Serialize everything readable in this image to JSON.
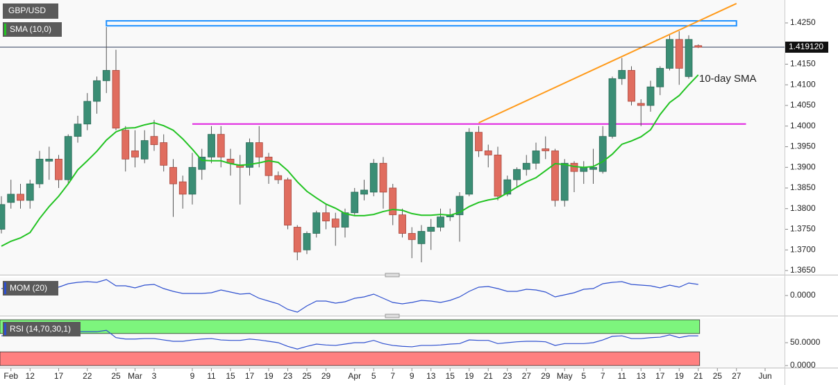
{
  "chart_data": [
    {
      "type": "candlestick",
      "title": "GBP/USD",
      "annotation": "10-day SMA",
      "categories": [
        null,
        "Feb",
        null,
        "12",
        null,
        null,
        "17",
        null,
        null,
        "22",
        null,
        null,
        "25",
        null,
        "Mar",
        null,
        "3",
        null,
        null,
        null,
        "9",
        null,
        "11",
        null,
        "15",
        null,
        "17",
        null,
        "19",
        null,
        "23",
        null,
        "25",
        null,
        "29",
        null,
        null,
        "Apr",
        null,
        "5",
        null,
        "7",
        null,
        "9",
        null,
        "13",
        null,
        "15",
        null,
        "19",
        null,
        "21",
        null,
        "23",
        null,
        "27",
        null,
        "29",
        null,
        "May",
        null,
        "5",
        null,
        "7",
        null,
        "11",
        null,
        "13",
        null,
        "17",
        null,
        "19",
        null,
        "21",
        null,
        "25",
        null,
        "27",
        null,
        null,
        "Jun"
      ],
      "open": [
        1.375,
        1.3815,
        1.3835,
        1.382,
        1.386,
        1.3915,
        1.392,
        1.387,
        1.3975,
        1.4005,
        1.406,
        1.411,
        1.4135,
        1.399,
        1.394,
        1.392,
        1.3975,
        1.396,
        1.39,
        1.3865,
        1.3835,
        1.3895,
        1.3925,
        1.398,
        1.392,
        1.3905,
        1.39,
        1.396,
        1.3925,
        1.388,
        1.387,
        1.3755,
        1.37,
        1.374,
        1.379,
        1.3775,
        1.3755,
        1.379,
        1.3835,
        1.384,
        1.391,
        1.385,
        1.3785,
        1.374,
        1.3715,
        1.3745,
        1.3755,
        1.378,
        1.3785,
        1.3835,
        1.3985,
        1.394,
        1.393,
        1.3835,
        1.387,
        1.3895,
        1.391,
        1.3945,
        1.394,
        1.382,
        1.391,
        1.389,
        1.3895,
        1.389,
        1.3975,
        1.4115,
        1.4135,
        1.4055,
        1.405,
        1.4095,
        1.414,
        1.421,
        1.412,
        1.4195,
        null,
        null,
        null,
        null,
        null,
        null,
        null
      ],
      "high": [
        1.383,
        1.387,
        1.386,
        1.387,
        1.394,
        1.395,
        1.393,
        1.398,
        1.4025,
        1.408,
        1.412,
        1.424,
        1.4185,
        1.4,
        1.399,
        1.399,
        1.4015,
        1.398,
        1.392,
        1.388,
        1.3935,
        1.3945,
        1.4,
        1.4,
        1.3945,
        1.393,
        1.397,
        1.4,
        1.3935,
        1.389,
        1.3875,
        1.376,
        1.3745,
        1.3795,
        1.381,
        1.379,
        1.38,
        1.385,
        1.387,
        1.392,
        1.3925,
        1.386,
        1.38,
        1.3755,
        1.376,
        1.3775,
        1.38,
        1.38,
        1.384,
        1.3995,
        1.4,
        1.3955,
        1.395,
        1.388,
        1.39,
        1.393,
        1.396,
        1.3975,
        1.3945,
        1.392,
        1.3915,
        1.3915,
        1.3945,
        1.4,
        1.412,
        1.4165,
        1.4145,
        1.4065,
        1.411,
        1.4145,
        1.422,
        1.423,
        1.422,
        1.4198,
        null,
        null,
        null,
        null,
        null,
        null,
        null
      ],
      "low": [
        1.374,
        1.38,
        1.38,
        1.38,
        1.385,
        1.387,
        1.385,
        1.386,
        1.396,
        1.399,
        1.403,
        1.408,
        1.399,
        1.389,
        1.39,
        1.391,
        1.394,
        1.389,
        1.378,
        1.38,
        1.381,
        1.387,
        1.391,
        1.39,
        1.388,
        1.381,
        1.388,
        1.39,
        1.386,
        1.386,
        1.375,
        1.3675,
        1.369,
        1.373,
        1.375,
        1.371,
        1.373,
        1.3785,
        1.382,
        1.383,
        1.38,
        1.376,
        1.373,
        1.368,
        1.367,
        1.37,
        1.3745,
        1.377,
        1.372,
        1.383,
        1.3925,
        1.39,
        1.382,
        1.383,
        1.385,
        1.388,
        1.3895,
        1.392,
        1.3805,
        1.3805,
        1.384,
        1.386,
        1.386,
        1.3885,
        1.397,
        1.41,
        1.405,
        1.4,
        1.4035,
        1.4075,
        1.4135,
        1.41,
        1.4115,
        1.4189,
        null,
        null,
        null,
        null,
        null,
        null,
        null
      ],
      "close": [
        1.381,
        1.3835,
        1.382,
        1.386,
        1.392,
        1.392,
        1.387,
        1.3975,
        1.4005,
        1.406,
        1.411,
        1.4135,
        1.3995,
        1.392,
        1.3925,
        1.3965,
        1.3955,
        1.3905,
        1.386,
        1.3835,
        1.39,
        1.3925,
        1.398,
        1.3925,
        1.391,
        1.39,
        1.396,
        1.3925,
        1.388,
        1.387,
        1.376,
        1.3695,
        1.374,
        1.379,
        1.377,
        1.3755,
        1.379,
        1.384,
        1.3845,
        1.391,
        1.384,
        1.3785,
        1.374,
        1.3725,
        1.3745,
        1.3755,
        1.378,
        1.3785,
        1.383,
        1.3985,
        1.394,
        1.393,
        1.383,
        1.387,
        1.3895,
        1.391,
        1.394,
        1.394,
        1.382,
        1.391,
        1.389,
        1.39,
        1.39,
        1.3975,
        1.4115,
        1.4135,
        1.406,
        1.405,
        1.4095,
        1.414,
        1.421,
        1.414,
        1.421,
        1.4191,
        null,
        null,
        null,
        null,
        null,
        null,
        null
      ],
      "up_color": "#3b8e75",
      "down_color": "#e06d5f",
      "series": [
        {
          "name": "SMA (10,0)",
          "color": "#22c322",
          "values": [
            1.3709,
            1.3721,
            1.3729,
            1.3742,
            1.3776,
            1.3805,
            1.383,
            1.386,
            1.3894,
            1.3916,
            1.3939,
            1.3966,
            1.3986,
            1.3995,
            1.3996,
            1.4003,
            1.4008,
            1.4001,
            1.399,
            1.3969,
            1.3944,
            1.3917,
            1.3916,
            1.3916,
            1.3909,
            1.3905,
            1.3907,
            1.3911,
            1.3916,
            1.3912,
            1.3892,
            1.3865,
            1.3842,
            1.3826,
            1.3811,
            1.3801,
            1.3788,
            1.3783,
            1.3783,
            1.3786,
            1.3793,
            1.3798,
            1.3796,
            1.3788,
            1.3784,
            1.3784,
            1.3786,
            1.3784,
            1.3791,
            1.3805,
            1.3815,
            1.3821,
            1.3825,
            1.3838,
            1.3852,
            1.3865,
            1.3875,
            1.3892,
            1.3909,
            1.3907,
            1.3902,
            1.39,
            1.3902,
            1.3914,
            1.3932,
            1.3956,
            1.3964,
            1.3974,
            1.3991,
            1.4028,
            1.4057,
            1.4074,
            1.41,
            1.4124,
            null,
            null,
            null,
            null,
            null,
            null,
            null
          ]
        }
      ],
      "ylim": [
        1.36416,
        1.42971
      ],
      "yticks": [
        {
          "value": 1.365,
          "label": "1.3650"
        },
        {
          "value": 1.37,
          "label": "1.3700"
        },
        {
          "value": 1.375,
          "label": "1.3750"
        },
        {
          "value": 1.38,
          "label": "1.3800"
        },
        {
          "value": 1.385,
          "label": "1.3850"
        },
        {
          "value": 1.39,
          "label": "1.3900"
        },
        {
          "value": 1.395,
          "label": "1.3950"
        },
        {
          "value": 1.4,
          "label": "1.4000"
        },
        {
          "value": 1.405,
          "label": "1.4050"
        },
        {
          "value": 1.41,
          "label": "1.4100"
        },
        {
          "value": 1.415,
          "label": "1.4150"
        },
        {
          "value": 1.425,
          "label": "1.4250"
        }
      ],
      "last_price": {
        "value": 1.41912,
        "label": "1.419120"
      },
      "drawings": [
        {
          "kind": "box",
          "x": [
            11,
            77
          ],
          "y": [
            1.4243,
            1.4255
          ],
          "color": "#1e90ff"
        },
        {
          "kind": "line",
          "x": [
            50,
            77
          ],
          "y": [
            1.4008,
            1.4297
          ],
          "color": "#ff9a1a"
        },
        {
          "kind": "line",
          "x": [
            20,
            78
          ],
          "y": [
            1.4005,
            1.4005
          ],
          "color": "#e020e0"
        }
      ]
    },
    {
      "type": "line",
      "series": [
        {
          "name": "MOM (20)",
          "color": "#2d4fcf",
          "values": [
            0.01,
            0.011,
            0.011,
            0.009,
            0.008,
            0.014,
            0.012,
            0.017,
            0.019,
            0.02,
            0.019,
            0.023,
            0.014,
            0.014,
            0.011,
            0.015,
            0.016,
            0.01,
            0.006,
            0.003,
            0.003,
            0.003,
            0.004,
            0.008,
            0.005,
            0.002,
            0.003,
            -0.004,
            -0.008,
            -0.012,
            -0.02,
            -0.024,
            -0.015,
            -0.008,
            -0.008,
            -0.011,
            -0.009,
            -0.004,
            -0.002,
            0.002,
            -0.004,
            -0.01,
            -0.012,
            -0.01,
            -0.007,
            -0.008,
            -0.01,
            -0.007,
            -0.002,
            0.006,
            0.012,
            0.013,
            0.01,
            0.006,
            0.006,
            0.009,
            0.008,
            0.005,
            -0.002,
            0.001,
            0.004,
            0.009,
            0.01,
            0.017,
            0.019,
            0.02,
            0.016,
            0.015,
            0.014,
            0.011,
            0.015,
            0.012,
            0.018,
            0.016,
            null,
            null,
            null,
            null,
            null,
            null,
            null
          ]
        }
      ],
      "ylim": [
        -0.026,
        0.026
      ],
      "yticks": [
        {
          "value": 0,
          "label": "0.0000"
        }
      ]
    },
    {
      "type": "line",
      "series": [
        {
          "name": "RSI (14,70,30,1)",
          "color": "#2d4fcf",
          "values": [
            65,
            67,
            65,
            68,
            71,
            70,
            70,
            73,
            74,
            74,
            74,
            77,
            61,
            58,
            58,
            59,
            59,
            56,
            53,
            53,
            56,
            58,
            59,
            56,
            55,
            55,
            58,
            56,
            53,
            50,
            42,
            36,
            42,
            47,
            45,
            44,
            47,
            50,
            50,
            55,
            48,
            44,
            42,
            41,
            44,
            44,
            45,
            47,
            48,
            56,
            55,
            55,
            48,
            50,
            52,
            53,
            53,
            52,
            44,
            48,
            48,
            48,
            50,
            56,
            64,
            65,
            59,
            59,
            61,
            62,
            67,
            61,
            65,
            65,
            null,
            null,
            null,
            null,
            null,
            null,
            null
          ]
        }
      ],
      "bands": [
        {
          "from": 70,
          "to": 100,
          "color": "#7df57d"
        },
        {
          "from": 0,
          "to": 30,
          "color": "#ff8080"
        }
      ],
      "ylim": [
        0,
        100
      ],
      "yticks": [
        {
          "value": 50,
          "label": "50.0000"
        },
        {
          "value": 0,
          "label": "0.0000"
        }
      ]
    }
  ]
}
